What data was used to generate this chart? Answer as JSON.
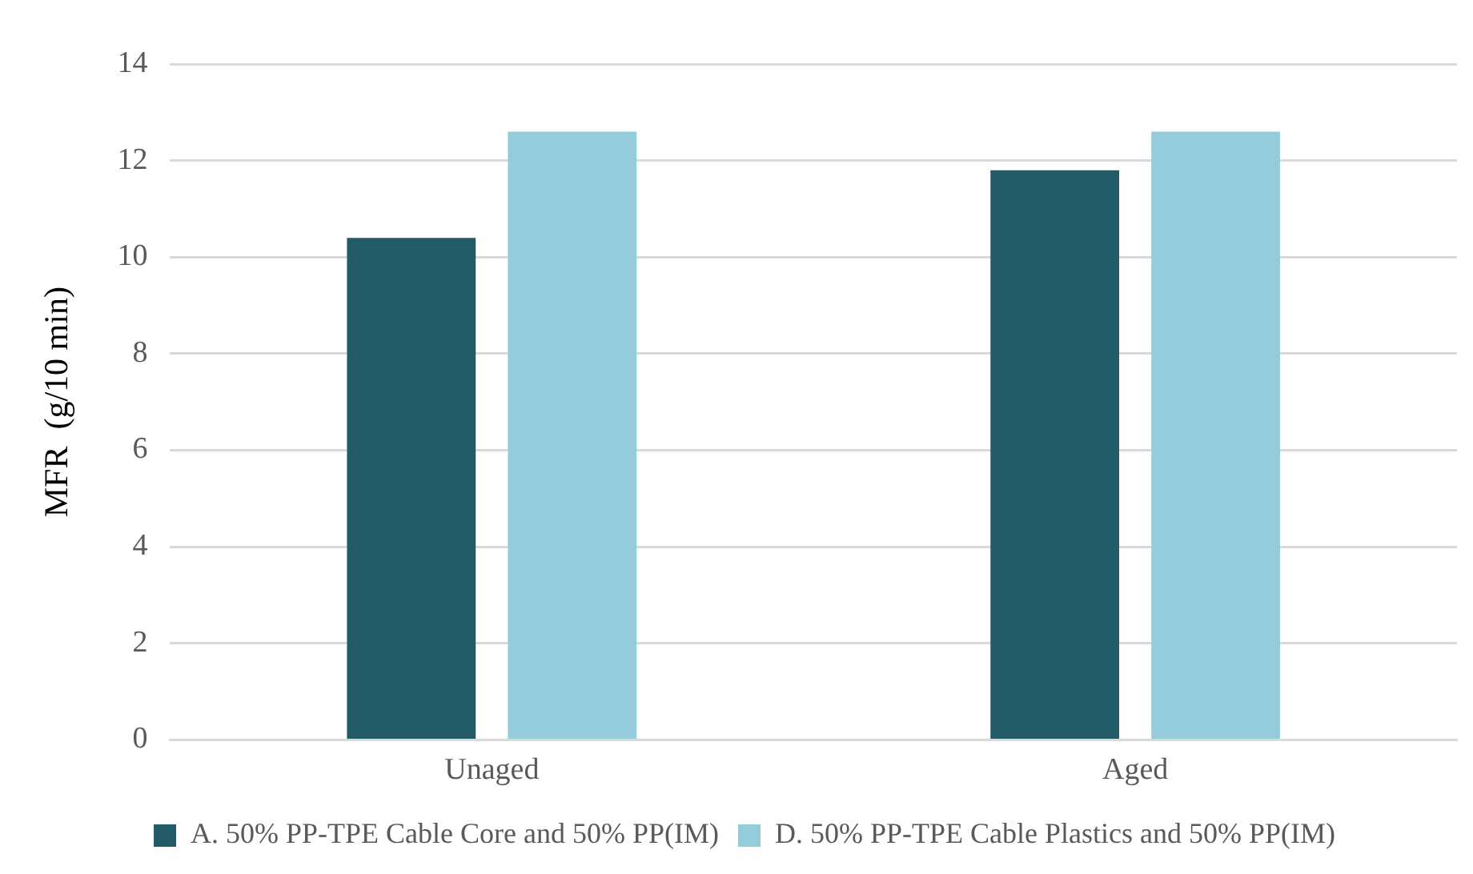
{
  "chart_data": {
    "type": "bar",
    "ylabel": "MFR  (g/10 min)",
    "categories": [
      "Unaged",
      "Aged"
    ],
    "series": [
      {
        "name": "A. 50% PP-TPE Cable Core and 50% PP(IM)",
        "color": "#225a68",
        "values": [
          10.4,
          11.8
        ]
      },
      {
        "name": "D. 50% PP-TPE Cable Plastics and 50% PP(IM)",
        "color": "#94ccdc",
        "values": [
          12.6,
          12.6
        ]
      }
    ],
    "ylim": [
      0,
      14
    ],
    "yticks": [
      0,
      2,
      4,
      6,
      8,
      10,
      12,
      14
    ],
    "grid": "y",
    "legend": "bottom"
  }
}
